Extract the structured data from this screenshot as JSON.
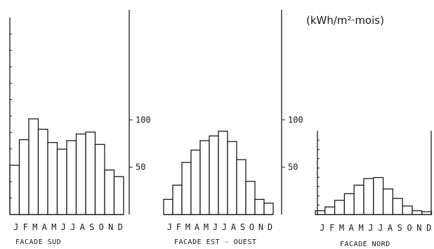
{
  "chart_data": [
    {
      "type": "bar",
      "title": "FACADE SUD",
      "categories": [
        "J",
        "F",
        "M",
        "A",
        "M",
        "J",
        "J",
        "A",
        "S",
        "O",
        "N",
        "D"
      ],
      "values": [
        52,
        79,
        101,
        90,
        76,
        69,
        78,
        85,
        87,
        74,
        47,
        40
      ],
      "ylim": [
        0,
        110
      ],
      "yticks": [
        {
          "value": 50,
          "label": "50"
        },
        {
          "value": 100,
          "label": "100"
        }
      ],
      "unit": ""
    },
    {
      "type": "bar",
      "title": "FACADE EST - OUEST",
      "categories": [
        "J",
        "F",
        "M",
        "A",
        "M",
        "J",
        "J",
        "A",
        "S",
        "O",
        "N",
        "D"
      ],
      "values": [
        16,
        31,
        55,
        68,
        78,
        83,
        88,
        77,
        58,
        35,
        16,
        12
      ],
      "ylim": [
        0,
        110
      ],
      "yticks": [
        {
          "value": 50,
          "label": "50"
        },
        {
          "value": 100,
          "label": "100"
        }
      ],
      "unit": "(kWh/m²·mois)"
    },
    {
      "type": "bar",
      "title": "FACADE NORD",
      "categories": [
        "J",
        "F",
        "M",
        "A",
        "M",
        "J",
        "J",
        "A",
        "S",
        "O",
        "N",
        "D"
      ],
      "values": [
        4,
        8,
        15,
        22,
        31,
        38,
        39,
        27,
        17,
        9,
        4,
        3
      ],
      "ylim": [
        0,
        50
      ],
      "yticks": [],
      "unit": ""
    }
  ]
}
